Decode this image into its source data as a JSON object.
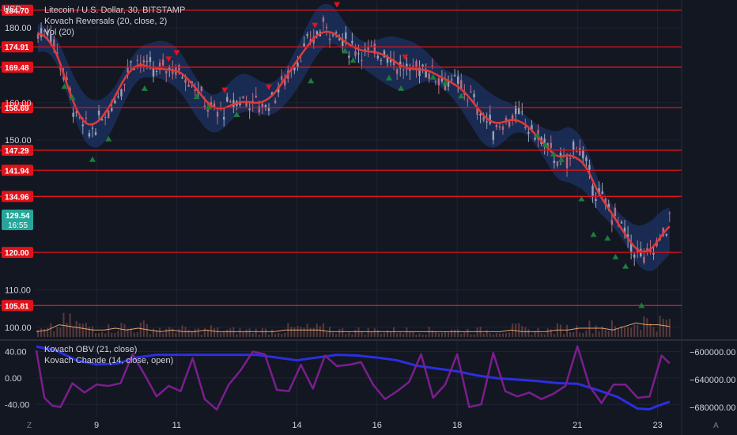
{
  "header": {
    "currency": "USD",
    "title": "Litecoin / U.S. Dollar, 30, BITSTAMP",
    "indicator_1": "Kovach Reversals (20, close, 2)",
    "indicator_2": "Vol (20)"
  },
  "sub_panel": {
    "indicator_1": "Kovach OBV (21, close)",
    "indicator_2": "Kovach Chande (14, close, open)"
  },
  "bottom_bar": {
    "left_mark": "Z",
    "right_mark": "A"
  },
  "colors": {
    "background": "#131722",
    "grid": "#1f2433",
    "level_line": "#e0131b",
    "candle_up": "#9aa3b5",
    "candle_down": "#ba6b7c",
    "band_fill": "#1d3364",
    "ma_line": "#e03a3a",
    "sell_marker": "#e0131b",
    "buy_marker": "#1e7d3c",
    "volume_line": "#e8a16a",
    "obv_line": "#2a2fe0",
    "chande_line": "#7b1e8e",
    "last_price_badge": "#26a69a"
  },
  "chart_data": [
    {
      "type": "line",
      "title": "Litecoin / U.S. Dollar, 30, BITSTAMP",
      "x_ticks": [
        "9",
        "11",
        "14",
        "16",
        "18",
        "21",
        "23"
      ],
      "x_tick_positions_days": [
        9,
        11,
        14,
        16,
        18,
        21,
        23
      ],
      "x_range_days": [
        7.5,
        23.6
      ],
      "y_range": [
        97,
        187
      ],
      "y_ticks": [
        100,
        110,
        150,
        160,
        180
      ],
      "y_tick_labels": [
        "100.00",
        "110.00",
        "150.00",
        "160.00",
        "180.00"
      ],
      "grid": true,
      "price_path": {
        "x": [
          7.5,
          7.8,
          8.0,
          8.3,
          8.5,
          8.8,
          9.0,
          9.3,
          9.6,
          9.9,
          10.2,
          10.5,
          10.8,
          11.1,
          11.4,
          11.7,
          12.0,
          12.3,
          12.6,
          12.9,
          13.2,
          13.5,
          13.8,
          14.1,
          14.4,
          14.7,
          15.0,
          15.3,
          15.6,
          15.9,
          16.2,
          16.5,
          16.8,
          17.1,
          17.4,
          17.7,
          18.0,
          18.3,
          18.6,
          18.9,
          19.2,
          19.5,
          19.8,
          20.1,
          20.4,
          20.7,
          21.0,
          21.3,
          21.6,
          21.9,
          22.1,
          22.3,
          22.5,
          22.7,
          22.9,
          23.1,
          23.3
        ],
        "y": [
          178,
          180,
          174,
          164,
          156,
          152,
          154,
          158,
          164,
          172,
          170,
          168,
          170,
          168,
          166,
          160,
          157,
          159,
          161,
          160,
          159,
          163,
          168,
          173,
          177,
          181,
          178,
          175,
          174,
          173,
          174,
          170,
          168,
          170,
          168,
          166,
          165,
          162,
          157,
          153,
          155,
          157,
          153,
          150,
          146,
          143,
          150,
          140,
          134,
          130,
          127,
          122,
          120,
          118,
          121,
          124,
          129
        ]
      },
      "horizontal_levels": [
        184.7,
        174.91,
        169.48,
        158.69,
        147.29,
        141.94,
        134.96,
        120.0,
        105.81
      ],
      "horizontal_level_labels": [
        "184.70",
        "174.91",
        "169.48",
        "158.69",
        "147.29",
        "141.94",
        "134.96",
        "120.00",
        "105.81"
      ],
      "last_price": 129.54,
      "last_price_label": "129.54",
      "countdown_label": "16:55",
      "sell_signals": [
        {
          "x": 11.0,
          "y": 173.2
        },
        {
          "x": 10.8,
          "y": 171.5
        },
        {
          "x": 12.2,
          "y": 163.2
        },
        {
          "x": 14.45,
          "y": 180.5
        },
        {
          "x": 15.0,
          "y": 186.0
        },
        {
          "x": 16.7,
          "y": 172.0
        },
        {
          "x": 13.3,
          "y": 164.0
        }
      ],
      "buy_signals": [
        {
          "x": 8.2,
          "y": 164.5
        },
        {
          "x": 8.4,
          "y": 161.6
        },
        {
          "x": 8.9,
          "y": 145.0
        },
        {
          "x": 9.3,
          "y": 150.5
        },
        {
          "x": 10.2,
          "y": 164.0
        },
        {
          "x": 11.5,
          "y": 161.8
        },
        {
          "x": 11.8,
          "y": 159.0
        },
        {
          "x": 12.5,
          "y": 157.0
        },
        {
          "x": 14.35,
          "y": 166.0
        },
        {
          "x": 15.2,
          "y": 174.0
        },
        {
          "x": 15.4,
          "y": 171.5
        },
        {
          "x": 16.3,
          "y": 166.8
        },
        {
          "x": 16.6,
          "y": 164.0
        },
        {
          "x": 17.4,
          "y": 167.0
        },
        {
          "x": 17.7,
          "y": 165.5
        },
        {
          "x": 18.1,
          "y": 162.0
        },
        {
          "x": 20.0,
          "y": 151.5
        },
        {
          "x": 20.2,
          "y": 149.0
        },
        {
          "x": 20.4,
          "y": 146.5
        },
        {
          "x": 20.6,
          "y": 145.0
        },
        {
          "x": 21.1,
          "y": 134.5
        },
        {
          "x": 21.4,
          "y": 125.0
        },
        {
          "x": 21.75,
          "y": 124.0
        },
        {
          "x": 21.95,
          "y": 119.0
        },
        {
          "x": 22.2,
          "y": 116.5
        },
        {
          "x": 22.6,
          "y": 106.0
        }
      ],
      "volume_profile": [
        3,
        4,
        7,
        6,
        5,
        4,
        4,
        5,
        4,
        5,
        4,
        3,
        4,
        3,
        3,
        4,
        3,
        3,
        3,
        3,
        3,
        3,
        4,
        4,
        4,
        4,
        3,
        3,
        3,
        3,
        3,
        3,
        3,
        3,
        3,
        3,
        3,
        3,
        3,
        3,
        3,
        3,
        4,
        3,
        3,
        3,
        4,
        4,
        5,
        5,
        5,
        4,
        6,
        8,
        7,
        7,
        6
      ]
    },
    {
      "type": "line",
      "title": "Kovach OBV (21, close) / Kovach Chande (14, close, open)",
      "left_y_range": [
        -60,
        55
      ],
      "left_y_ticks": [
        40,
        0,
        -40
      ],
      "left_y_tick_labels": [
        "40.00",
        "0.00",
        "-40.00"
      ],
      "right_y_range": [
        -695000,
        -585000
      ],
      "right_y_ticks": [
        -600000,
        -640000,
        -680000
      ],
      "right_y_tick_labels": [
        "−600000.00",
        "−640000.00",
        "−680000.00"
      ],
      "series": [
        {
          "name": "Kovach OBV (21, close)",
          "axis": "right",
          "x": [
            7.5,
            8.0,
            8.5,
            9.0,
            9.5,
            10.0,
            10.5,
            11.0,
            11.5,
            12.0,
            12.5,
            13.0,
            13.5,
            14.0,
            14.5,
            15.0,
            15.5,
            16.0,
            16.5,
            17.0,
            17.5,
            18.0,
            18.5,
            19.0,
            19.5,
            20.0,
            20.5,
            21.0,
            21.5,
            22.0,
            22.5,
            22.8,
            23.0,
            23.3
          ],
          "y": [
            -592000,
            -598000,
            -612000,
            -618000,
            -617000,
            -608000,
            -604000,
            -604000,
            -604000,
            -604000,
            -604000,
            -604000,
            -608000,
            -612000,
            -608000,
            -604000,
            -605000,
            -608000,
            -612000,
            -620000,
            -624000,
            -628000,
            -634000,
            -638000,
            -640000,
            -642000,
            -645000,
            -646000,
            -655000,
            -665000,
            -682000,
            -683000,
            -678000,
            -672000
          ]
        },
        {
          "name": "Kovach Chande (14, close, open)",
          "axis": "left",
          "x": [
            7.5,
            7.7,
            7.9,
            8.1,
            8.4,
            8.7,
            9.0,
            9.3,
            9.6,
            9.9,
            10.2,
            10.5,
            10.8,
            11.1,
            11.4,
            11.7,
            12.0,
            12.3,
            12.6,
            12.9,
            13.2,
            13.5,
            13.8,
            14.1,
            14.4,
            14.7,
            15.0,
            15.3,
            15.6,
            15.9,
            16.2,
            16.5,
            16.8,
            17.1,
            17.4,
            17.7,
            18.0,
            18.3,
            18.6,
            18.9,
            19.2,
            19.5,
            19.8,
            20.1,
            20.4,
            20.7,
            21.0,
            21.3,
            21.6,
            21.9,
            22.2,
            22.5,
            22.8,
            23.1,
            23.3
          ],
          "y": [
            42,
            -30,
            -42,
            -44,
            -8,
            -22,
            -10,
            -12,
            -8,
            36,
            5,
            -28,
            -12,
            -20,
            30,
            -32,
            -48,
            -10,
            12,
            40,
            36,
            -18,
            -20,
            20,
            -16,
            34,
            18,
            20,
            24,
            -10,
            -32,
            -20,
            -6,
            36,
            -30,
            -10,
            36,
            -44,
            -40,
            38,
            -20,
            -28,
            -22,
            -32,
            -24,
            -12,
            48,
            -12,
            -38,
            -10,
            -10,
            -30,
            -28,
            34,
            22
          ]
        }
      ]
    }
  ]
}
